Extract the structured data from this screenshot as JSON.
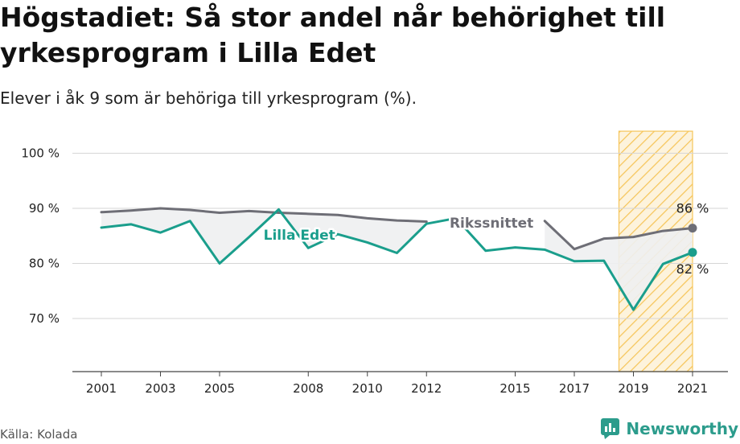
{
  "title": "Högstadiet: Så stor andel når behörighet till yrkesprogram i Lilla Edet",
  "subtitle": "Elever i åk 9 som är behöriga till yrkesprogram (%).",
  "source": "Källa: Kolada",
  "brand": {
    "name": "Newsworthy",
    "icon": "newsworthy-logo-icon"
  },
  "colors": {
    "lilla_edet": "#1a9e8c",
    "riksnittet": "#6e6e76",
    "highlight": "#f6c55a",
    "fill": "#eef0f1",
    "grid": "#d6d6d6"
  },
  "chart_data": {
    "type": "line",
    "title": "Högstadiet: Så stor andel når behörighet till yrkesprogram i Lilla Edet",
    "subtitle": "Elever i åk 9 som är behöriga till yrkesprogram (%).",
    "x": [
      2001,
      2002,
      2003,
      2004,
      2005,
      2006,
      2007,
      2008,
      2009,
      2010,
      2011,
      2012,
      2013,
      2014,
      2015,
      2016,
      2017,
      2018,
      2019,
      2020,
      2021
    ],
    "x_ticks": [
      2001,
      2003,
      2005,
      2008,
      2010,
      2012,
      2015,
      2017,
      2019,
      2021
    ],
    "y_ticks": [
      70,
      80,
      90,
      100
    ],
    "y_tick_labels": [
      "70 %",
      "80 %",
      "90 %",
      "100 %"
    ],
    "ylim": [
      61,
      104
    ],
    "grid": true,
    "highlight_range": [
      2019,
      2021
    ],
    "series": [
      {
        "name": "Lilla Edet",
        "color": "#1a9e8c",
        "values": [
          86.5,
          87.1,
          85.6,
          87.7,
          80.0,
          84.8,
          89.8,
          82.8,
          85.3,
          83.8,
          81.9,
          87.2,
          88.2,
          82.3,
          82.9,
          82.5,
          80.4,
          80.5,
          71.6,
          79.9,
          82.0
        ]
      },
      {
        "name": "Rikssnittet",
        "color": "#6e6e76",
        "values": [
          89.3,
          89.6,
          90.0,
          89.7,
          89.2,
          89.5,
          89.2,
          89.0,
          88.8,
          88.2,
          87.8,
          87.6,
          null,
          null,
          null,
          87.7,
          82.6,
          84.5,
          84.8,
          85.9,
          86.4
        ]
      }
    ],
    "end_labels": {
      "lilla_edet": "82 %",
      "riksnittet": "86 %"
    }
  }
}
